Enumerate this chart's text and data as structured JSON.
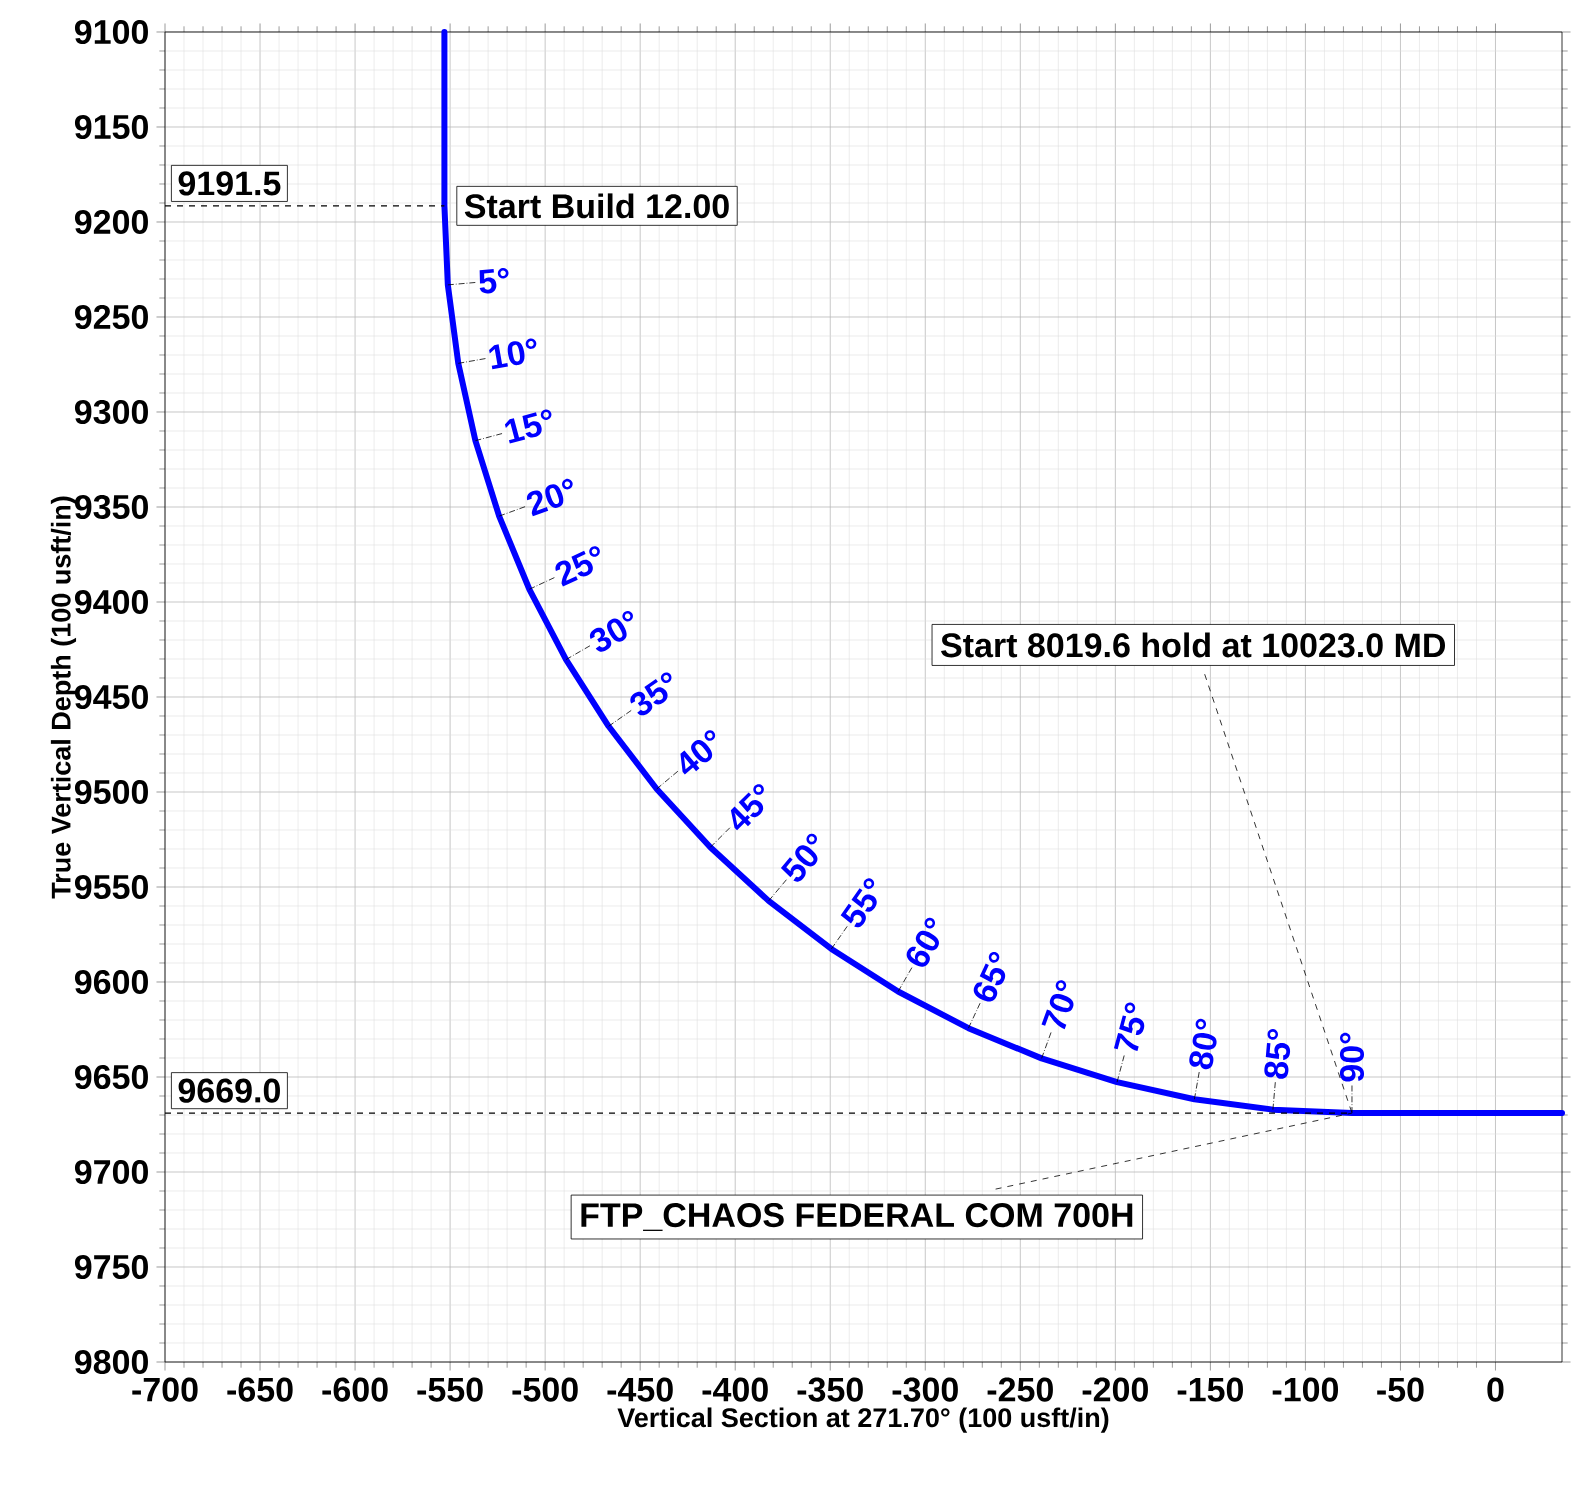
{
  "chart_data": {
    "type": "line",
    "xlabel": "Vertical Section at 271.70° (100 usft/in)",
    "ylabel": "True Vertical Depth (100 usft/in)",
    "x": [
      -553,
      -553,
      -551.2,
      -545.7,
      -536.7,
      -524.2,
      -508.3,
      -489.0,
      -466.6,
      -441.3,
      -413.1,
      -382.4,
      -349.4,
      -314.3,
      -277.3,
      -238.8,
      -199.1,
      -158.4,
      -117.1,
      -75.5,
      35
    ],
    "series": [
      {
        "color": "#0000ff",
        "values": [
          9100,
          9191.5,
          9233.1,
          9274.4,
          9315.1,
          9354.8,
          9393.3,
          9430.3,
          9465.4,
          9498.4,
          9529.1,
          9557.3,
          9582.6,
          9605.0,
          9624.3,
          9640.2,
          9652.7,
          9661.7,
          9667.2,
          9669.0,
          9669.0
        ]
      }
    ],
    "xlim": [
      -700,
      35
    ],
    "ylim": [
      9800,
      9100
    ],
    "xticks": [
      -700,
      -650,
      -600,
      -550,
      -500,
      -450,
      -400,
      -350,
      -300,
      -250,
      -200,
      -150,
      -100,
      -50,
      0
    ],
    "yticks": [
      9100,
      9150,
      9200,
      9250,
      9300,
      9350,
      9400,
      9450,
      9500,
      9550,
      9600,
      9650,
      9700,
      9750,
      9800
    ],
    "grid": true,
    "ref_lines": [
      {
        "axis": "y",
        "value": 9191.5,
        "label": "9191.5",
        "line_style": "dashed"
      },
      {
        "axis": "y",
        "value": 9669.0,
        "label": "9669.0",
        "line_style": "dashed"
      }
    ],
    "annotations": [
      {
        "text": "Start Build 12.00",
        "x": -553,
        "y": 9191.5
      },
      {
        "text": "Start 8019.6 hold at 10023.0 MD",
        "x": -75.5,
        "y": 9669.0
      },
      {
        "text": "FTP_CHAOS FEDERAL COM 700H",
        "x": -75.5,
        "y": 9669.0
      },
      {
        "text": "5°",
        "x": -551.2,
        "y": 9233.1
      },
      {
        "text": "10°",
        "x": -545.7,
        "y": 9274.4
      },
      {
        "text": "15°",
        "x": -536.7,
        "y": 9315.1
      },
      {
        "text": "20°",
        "x": -524.2,
        "y": 9354.8
      },
      {
        "text": "25°",
        "x": -508.3,
        "y": 9393.3
      },
      {
        "text": "30°",
        "x": -489.0,
        "y": 9430.3
      },
      {
        "text": "35°",
        "x": -466.6,
        "y": 9465.4
      },
      {
        "text": "40°",
        "x": -441.3,
        "y": 9498.4
      },
      {
        "text": "45°",
        "x": -413.1,
        "y": 9529.1
      },
      {
        "text": "50°",
        "x": -382.4,
        "y": 9557.3
      },
      {
        "text": "55°",
        "x": -349.4,
        "y": 9582.6
      },
      {
        "text": "60°",
        "x": -314.3,
        "y": 9605.0
      },
      {
        "text": "65°",
        "x": -277.3,
        "y": 9624.3
      },
      {
        "text": "70°",
        "x": -238.8,
        "y": 9640.2
      },
      {
        "text": "75°",
        "x": -199.1,
        "y": 9652.7
      },
      {
        "text": "80°",
        "x": -158.4,
        "y": 9661.7
      },
      {
        "text": "85°",
        "x": -117.1,
        "y": 9667.2
      },
      {
        "text": "90°",
        "x": -75.5,
        "y": 9669.0
      }
    ]
  }
}
